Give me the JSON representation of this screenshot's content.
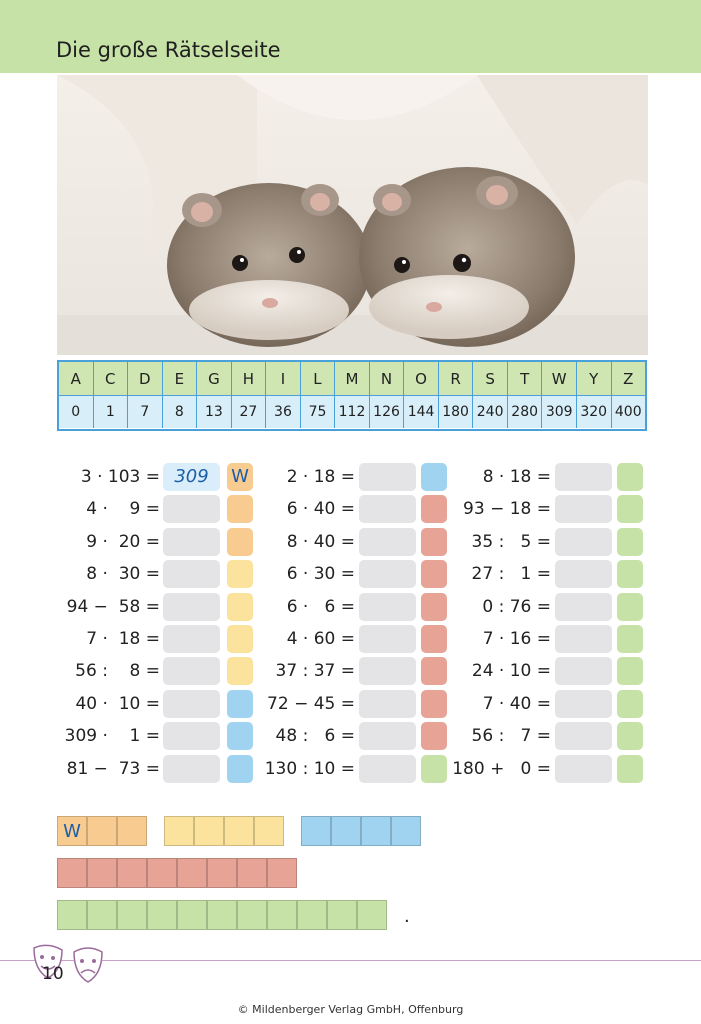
{
  "header": {
    "title": "Die große Rätselseite"
  },
  "code_table": {
    "letters": [
      "A",
      "C",
      "D",
      "E",
      "G",
      "H",
      "I",
      "L",
      "M",
      "N",
      "O",
      "R",
      "S",
      "T",
      "W",
      "Y",
      "Z"
    ],
    "numbers": [
      "0",
      "1",
      "7",
      "8",
      "13",
      "27",
      "36",
      "75",
      "112",
      "126",
      "144",
      "180",
      "240",
      "280",
      "309",
      "320",
      "400"
    ]
  },
  "equations": {
    "col1": [
      "3 · 103 =",
      "4 ·    9 =",
      "9 ·  20 =",
      "8 ·  30 =",
      "94 −  58 =",
      "7 ·  18 =",
      "56 :    8 =",
      "40 ·  10 =",
      "309 ·    1 =",
      "81 −  73 ="
    ],
    "col2": [
      "2 · 18 =",
      "6 · 40 =",
      "8 · 40 =",
      "6 · 30 =",
      "6 ·   6 =",
      "4 · 60 =",
      "37 : 37 =",
      "72 − 45 =",
      "48 :   6 =",
      "130 : 10 ="
    ],
    "col3": [
      "8 · 18 =",
      "93 − 18 =",
      "35 :   5 =",
      "27 :   1 =",
      "0 : 76 =",
      "7 · 16 =",
      "24 · 10 =",
      "7 · 40 =",
      "56 :   7 =",
      "180 +   0 ="
    ]
  },
  "example_answer": {
    "value": "309",
    "letter": "W"
  },
  "solution": {
    "first_letter": "W"
  },
  "footer": {
    "page_number": "10",
    "copyright": "© Mildenberger Verlag GmbH, Offenburg"
  },
  "colors": {
    "green": "#c7e2a6",
    "orange": "#f8cc90",
    "yellow": "#fbe39d",
    "blue": "#9fd3f0",
    "red": "#e6a396",
    "gray": "#e4e4e6"
  }
}
